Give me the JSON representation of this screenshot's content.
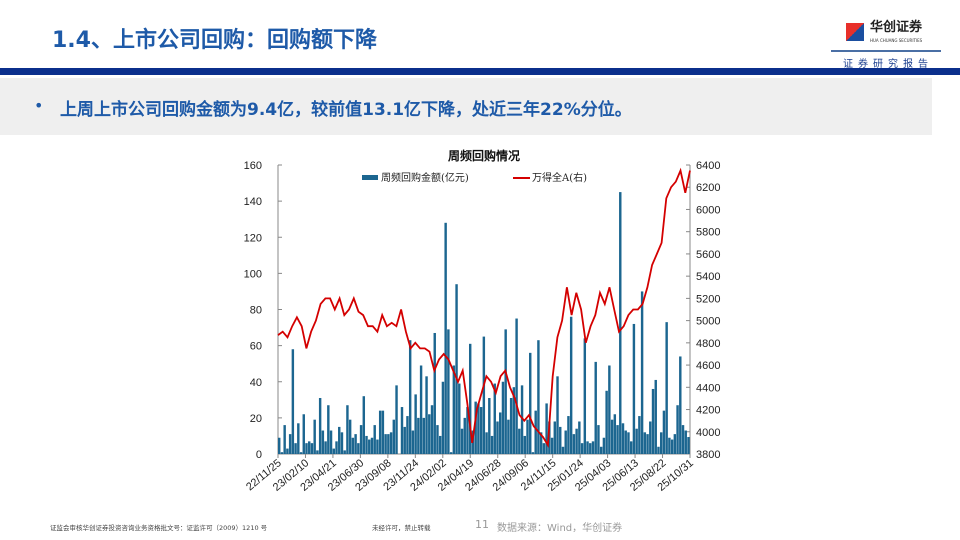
{
  "header": {
    "title": "1.4、上市公司回购：回购额下降",
    "logo_name": "华创证券",
    "logo_en": "HUA CHUANG SECURITIES",
    "subtitle": "证券研究报告"
  },
  "bullet": {
    "text": "上周上市公司回购金额为9.4亿，较前值13.1亿下降，处近三年22%分位。"
  },
  "footer": {
    "license": "证监会审核华创证券投资咨询业务资格批文号：证监许可（2009）1210 号",
    "notice": "未经许可，禁止转载",
    "page": "11",
    "source": "数据来源：Wind，华创证券"
  },
  "colors": {
    "bar": "#1c6690",
    "line": "#d40000",
    "title": "#1e5aa8",
    "band": "#0b2f8c"
  },
  "chart_data": {
    "type": "bar+line",
    "title": "周频回购情况",
    "legend": [
      "周频回购金额(亿元)",
      "万得全A(右)"
    ],
    "legend_position": "top",
    "ylim": [
      0,
      160
    ],
    "yticks": [
      0,
      20,
      40,
      60,
      80,
      100,
      120,
      140,
      160
    ],
    "y2lim": [
      3800,
      6400
    ],
    "y2ticks": [
      3800,
      4000,
      4200,
      4400,
      4600,
      4800,
      5000,
      5200,
      5400,
      5600,
      5800,
      6000,
      6200,
      6400
    ],
    "xticks": [
      "22/11/25",
      "23/02/10",
      "23/04/21",
      "23/06/30",
      "23/09/08",
      "23/11/24",
      "24/02/02",
      "24/04/19",
      "24/06/28",
      "24/09/06",
      "24/11/15",
      "25/01/24",
      "25/04/03",
      "25/06/13",
      "25/08/22",
      "25/10/31"
    ],
    "series": [
      {
        "name": "周频回购金额(亿元)",
        "axis": "left",
        "type": "bar",
        "values": [
          9,
          1,
          16,
          3,
          11,
          58,
          6,
          17,
          1,
          22,
          6,
          7,
          6,
          19,
          2,
          31,
          13,
          7,
          27,
          13,
          3,
          7,
          15,
          12,
          2,
          27,
          19,
          9,
          11,
          6,
          16,
          32,
          10,
          8,
          9,
          16,
          8,
          24,
          24,
          11,
          11,
          12,
          19,
          38,
          0,
          26,
          15,
          21,
          63,
          13,
          33,
          20,
          49,
          20,
          43,
          22,
          27,
          67,
          16,
          10,
          40,
          128,
          69,
          1,
          49,
          94,
          39,
          14,
          20,
          26,
          61,
          13,
          29,
          28,
          26,
          65,
          12,
          31,
          10,
          39,
          18,
          23,
          40,
          69,
          19,
          31,
          37,
          75,
          14,
          38,
          10,
          19,
          56,
          1,
          24,
          63,
          12,
          6,
          28,
          18,
          9,
          18,
          43,
          15,
          4,
          13,
          21,
          76,
          11,
          14,
          18,
          6,
          64,
          7,
          6,
          7,
          51,
          16,
          4,
          9,
          35,
          49,
          19,
          22,
          16,
          145,
          17,
          13,
          12,
          7,
          72,
          14,
          21,
          90,
          12,
          11,
          18,
          36,
          41,
          4,
          12,
          24,
          73,
          9,
          8,
          11,
          27,
          54,
          16,
          13,
          9.4
        ]
      },
      {
        "name": "万得全A(右)",
        "axis": "right",
        "type": "line",
        "values": [
          4870,
          4900,
          4850,
          4950,
          5030,
          4950,
          4750,
          4900,
          5000,
          5150,
          5200,
          5200,
          5100,
          5200,
          5050,
          5100,
          5200,
          5080,
          5050,
          4950,
          4950,
          4900,
          5050,
          4950,
          4980,
          4950,
          5100,
          4900,
          4750,
          4800,
          4750,
          4750,
          4720,
          4550,
          4650,
          4700,
          4650,
          4550,
          4450,
          4550,
          4250,
          3900,
          4200,
          4350,
          4500,
          4450,
          4350,
          4500,
          4550,
          4400,
          4300,
          4150,
          4100,
          4150,
          4050,
          4000,
          3950,
          3880,
          4500,
          4850,
          5000,
          5300,
          5050,
          5250,
          5100,
          4800,
          4950,
          5050,
          5250,
          5150,
          5300,
          5100,
          4900,
          4950,
          5050,
          5100,
          5100,
          5150,
          5300,
          5500,
          5600,
          5700,
          6100,
          6200,
          6250,
          6350,
          6150,
          6350
        ]
      }
    ]
  }
}
